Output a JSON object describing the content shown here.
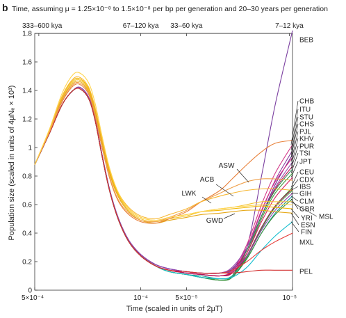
{
  "panel_letter": "b",
  "chart_data": {
    "type": "line",
    "title": "Time, assuming μ = 1.25×10⁻⁸ to 1.5×10⁻⁸ per bp per generation and 20–30 years per generation",
    "xlabel": "Time (scaled in units of 2μT)",
    "ylabel": "Population size (scaled in units of 4μNₑ × 10³)",
    "x_scale": "log",
    "x_reversed": true,
    "xlim": [
      0.0005,
      1e-05
    ],
    "ylim": [
      0,
      1.8
    ],
    "x_ticks": [
      {
        "value": 0.0005,
        "label": "5×10⁻⁴"
      },
      {
        "value": 0.0001,
        "label": "10⁻⁴"
      },
      {
        "value": 5e-05,
        "label": "5×10⁻⁵"
      },
      {
        "value": 1e-05,
        "label": "10⁻⁵"
      }
    ],
    "y_ticks": [
      0,
      0.2,
      0.4,
      0.6,
      0.8,
      1.0,
      1.2,
      1.4,
      1.6,
      1.8
    ],
    "y_tick_labels": [
      "0",
      "0.2",
      "0.4",
      "0.6",
      "0.8",
      "1",
      "1.2",
      "1.4",
      "1.6",
      "1.8"
    ],
    "top_axis_labels": [
      {
        "value": 0.00047,
        "label": "333–600 kya"
      },
      {
        "value": 0.0001,
        "label": "67–120 kya"
      },
      {
        "value": 5e-05,
        "label": "33–60 kya"
      },
      {
        "value": 1.05e-05,
        "label": "7–12 kya"
      }
    ],
    "x": [
      0.0005,
      0.0004,
      0.00033,
      0.00028,
      0.00025,
      0.00022,
      0.0002,
      0.00018,
      0.00016,
      0.00014,
      0.00012,
      0.0001,
      8e-05,
      6.5e-05,
      5e-05,
      4e-05,
      3e-05,
      2.5e-05,
      2e-05,
      1.6e-05,
      1.3e-05,
      1e-05
    ],
    "series": [
      {
        "name": "BEB",
        "color": "#7b3fa0",
        "values": [
          0.88,
          1.1,
          1.3,
          1.4,
          1.42,
          1.35,
          1.2,
          0.95,
          0.7,
          0.5,
          0.35,
          0.25,
          0.18,
          0.15,
          0.13,
          0.12,
          0.12,
          0.14,
          0.3,
          0.8,
          1.3,
          1.82
        ]
      },
      {
        "name": "CHB",
        "color": "#d23c8a",
        "values": [
          0.88,
          1.1,
          1.3,
          1.4,
          1.41,
          1.34,
          1.19,
          0.94,
          0.69,
          0.49,
          0.34,
          0.24,
          0.17,
          0.14,
          0.12,
          0.11,
          0.1,
          0.14,
          0.32,
          0.6,
          0.82,
          1.02
        ]
      },
      {
        "name": "ITU",
        "color": "#8b3a9e",
        "values": [
          0.88,
          1.1,
          1.3,
          1.4,
          1.42,
          1.35,
          1.2,
          0.95,
          0.7,
          0.5,
          0.35,
          0.25,
          0.18,
          0.15,
          0.13,
          0.12,
          0.12,
          0.16,
          0.3,
          0.55,
          0.77,
          0.98
        ]
      },
      {
        "name": "STU",
        "color": "#6a2d8f",
        "values": [
          0.88,
          1.1,
          1.3,
          1.4,
          1.42,
          1.35,
          1.2,
          0.95,
          0.7,
          0.5,
          0.35,
          0.25,
          0.18,
          0.15,
          0.13,
          0.12,
          0.12,
          0.15,
          0.28,
          0.52,
          0.74,
          0.95
        ]
      },
      {
        "name": "CHS",
        "color": "#e0308a",
        "values": [
          0.88,
          1.1,
          1.3,
          1.4,
          1.41,
          1.34,
          1.19,
          0.94,
          0.69,
          0.49,
          0.34,
          0.24,
          0.17,
          0.14,
          0.12,
          0.11,
          0.1,
          0.13,
          0.3,
          0.56,
          0.76,
          0.93
        ]
      },
      {
        "name": "PJL",
        "color": "#9b4fb0",
        "values": [
          0.88,
          1.1,
          1.3,
          1.4,
          1.42,
          1.35,
          1.2,
          0.95,
          0.7,
          0.5,
          0.35,
          0.25,
          0.18,
          0.15,
          0.13,
          0.12,
          0.12,
          0.16,
          0.3,
          0.52,
          0.72,
          0.9
        ]
      },
      {
        "name": "KHV",
        "color": "#c2185b",
        "values": [
          0.88,
          1.1,
          1.3,
          1.4,
          1.41,
          1.34,
          1.19,
          0.94,
          0.69,
          0.49,
          0.34,
          0.24,
          0.17,
          0.14,
          0.12,
          0.11,
          0.1,
          0.13,
          0.28,
          0.52,
          0.71,
          0.87
        ]
      },
      {
        "name": "PUR",
        "color": "#2e8b57",
        "values": [
          0.88,
          1.1,
          1.3,
          1.4,
          1.41,
          1.34,
          1.19,
          0.94,
          0.69,
          0.49,
          0.34,
          0.24,
          0.17,
          0.13,
          0.11,
          0.09,
          0.07,
          0.1,
          0.28,
          0.52,
          0.7,
          0.85
        ]
      },
      {
        "name": "TSI",
        "color": "#3c9a3c",
        "values": [
          0.88,
          1.1,
          1.3,
          1.4,
          1.41,
          1.34,
          1.19,
          0.94,
          0.69,
          0.49,
          0.34,
          0.24,
          0.17,
          0.13,
          0.11,
          0.09,
          0.08,
          0.1,
          0.26,
          0.5,
          0.68,
          0.82
        ]
      },
      {
        "name": "JPT",
        "color": "#d81b60",
        "values": [
          0.88,
          1.1,
          1.3,
          1.4,
          1.41,
          1.34,
          1.19,
          0.94,
          0.69,
          0.49,
          0.34,
          0.24,
          0.17,
          0.14,
          0.12,
          0.11,
          0.1,
          0.12,
          0.26,
          0.48,
          0.65,
          0.79
        ]
      },
      {
        "name": "CEU",
        "color": "#2ca02c",
        "values": [
          0.88,
          1.1,
          1.3,
          1.4,
          1.41,
          1.34,
          1.19,
          0.94,
          0.69,
          0.49,
          0.34,
          0.24,
          0.17,
          0.13,
          0.11,
          0.09,
          0.07,
          0.09,
          0.24,
          0.44,
          0.59,
          0.72
        ]
      },
      {
        "name": "CDX",
        "color": "#ad1457",
        "values": [
          0.88,
          1.1,
          1.3,
          1.4,
          1.41,
          1.34,
          1.19,
          0.94,
          0.69,
          0.49,
          0.34,
          0.24,
          0.17,
          0.14,
          0.12,
          0.11,
          0.1,
          0.12,
          0.24,
          0.44,
          0.59,
          0.71
        ]
      },
      {
        "name": "IBS",
        "color": "#43a047",
        "values": [
          0.88,
          1.1,
          1.3,
          1.4,
          1.41,
          1.34,
          1.19,
          0.94,
          0.69,
          0.49,
          0.34,
          0.24,
          0.17,
          0.13,
          0.11,
          0.09,
          0.07,
          0.09,
          0.23,
          0.43,
          0.58,
          0.7
        ]
      },
      {
        "name": "GIH",
        "color": "#8e44ad",
        "values": [
          0.88,
          1.1,
          1.3,
          1.4,
          1.42,
          1.35,
          1.2,
          0.95,
          0.7,
          0.5,
          0.35,
          0.25,
          0.18,
          0.15,
          0.13,
          0.12,
          0.12,
          0.14,
          0.24,
          0.42,
          0.56,
          0.68
        ]
      },
      {
        "name": "CLM",
        "color": "#1a9e9e",
        "values": [
          0.88,
          1.1,
          1.3,
          1.4,
          1.41,
          1.34,
          1.19,
          0.94,
          0.69,
          0.49,
          0.34,
          0.24,
          0.17,
          0.13,
          0.11,
          0.1,
          0.08,
          0.1,
          0.22,
          0.4,
          0.54,
          0.66
        ]
      },
      {
        "name": "GBR",
        "color": "#388e3c",
        "values": [
          0.88,
          1.1,
          1.3,
          1.4,
          1.41,
          1.34,
          1.19,
          0.94,
          0.69,
          0.49,
          0.34,
          0.24,
          0.17,
          0.13,
          0.11,
          0.09,
          0.07,
          0.09,
          0.22,
          0.4,
          0.53,
          0.64
        ]
      },
      {
        "name": "MSL",
        "color": "#f4c430",
        "values": [
          0.88,
          1.12,
          1.35,
          1.46,
          1.47,
          1.4,
          1.26,
          1.04,
          0.82,
          0.66,
          0.56,
          0.5,
          0.48,
          0.5,
          0.52,
          0.55,
          0.57,
          0.58,
          0.6,
          0.62,
          0.62,
          0.62
        ]
      },
      {
        "name": "YRI",
        "color": "#f2b705",
        "values": [
          0.88,
          1.12,
          1.36,
          1.47,
          1.48,
          1.41,
          1.27,
          1.05,
          0.83,
          0.67,
          0.57,
          0.51,
          0.49,
          0.51,
          0.53,
          0.55,
          0.56,
          0.57,
          0.58,
          0.59,
          0.58,
          0.57
        ]
      },
      {
        "name": "ESN",
        "color": "#e6a817",
        "values": [
          0.88,
          1.12,
          1.34,
          1.45,
          1.46,
          1.39,
          1.25,
          1.03,
          0.81,
          0.65,
          0.55,
          0.49,
          0.47,
          0.49,
          0.51,
          0.53,
          0.54,
          0.55,
          0.56,
          0.56,
          0.55,
          0.54
        ]
      },
      {
        "name": "FIN",
        "color": "#17becf",
        "values": [
          0.88,
          1.1,
          1.3,
          1.4,
          1.41,
          1.34,
          1.19,
          0.94,
          0.69,
          0.49,
          0.34,
          0.24,
          0.17,
          0.13,
          0.11,
          0.09,
          0.08,
          0.09,
          0.16,
          0.28,
          0.38,
          0.48
        ]
      },
      {
        "name": "MXL",
        "color": "#e53935",
        "values": [
          0.88,
          1.1,
          1.3,
          1.4,
          1.41,
          1.34,
          1.19,
          0.94,
          0.69,
          0.49,
          0.34,
          0.24,
          0.17,
          0.14,
          0.13,
          0.12,
          0.12,
          0.14,
          0.2,
          0.28,
          0.34,
          0.4
        ]
      },
      {
        "name": "PEL",
        "color": "#d32f2f",
        "values": [
          0.88,
          1.1,
          1.3,
          1.4,
          1.41,
          1.34,
          1.19,
          0.94,
          0.69,
          0.49,
          0.34,
          0.24,
          0.17,
          0.14,
          0.13,
          0.12,
          0.12,
          0.12,
          0.13,
          0.14,
          0.14,
          0.14
        ]
      },
      {
        "name": "ASW",
        "color": "#e8803a",
        "values": [
          0.88,
          1.11,
          1.32,
          1.43,
          1.44,
          1.37,
          1.22,
          1.0,
          0.78,
          0.62,
          0.53,
          0.48,
          0.47,
          0.5,
          0.55,
          0.62,
          0.7,
          0.78,
          0.88,
          0.97,
          1.03,
          1.05
        ]
      },
      {
        "name": "ACB",
        "color": "#f0a04b",
        "values": [
          0.88,
          1.11,
          1.33,
          1.44,
          1.45,
          1.38,
          1.23,
          1.01,
          0.79,
          0.63,
          0.54,
          0.49,
          0.48,
          0.51,
          0.56,
          0.62,
          0.68,
          0.72,
          0.76,
          0.78,
          0.78,
          0.77
        ]
      },
      {
        "name": "LWK",
        "color": "#f7b733",
        "values": [
          0.88,
          1.12,
          1.36,
          1.48,
          1.49,
          1.42,
          1.28,
          1.06,
          0.84,
          0.68,
          0.58,
          0.52,
          0.5,
          0.53,
          0.57,
          0.62,
          0.66,
          0.68,
          0.7,
          0.71,
          0.71,
          0.7
        ]
      },
      {
        "name": "GWD",
        "color": "#ffd54f",
        "values": [
          0.88,
          1.13,
          1.38,
          1.51,
          1.52,
          1.45,
          1.31,
          1.08,
          0.85,
          0.68,
          0.57,
          0.51,
          0.49,
          0.51,
          0.53,
          0.55,
          0.57,
          0.58,
          0.59,
          0.6,
          0.6,
          0.6
        ]
      }
    ],
    "annotations": [
      {
        "text": "ASW",
        "x": 3.3e-05,
        "y": 0.99
      },
      {
        "text": "ACB",
        "x": 4.1e-05,
        "y": 0.85
      },
      {
        "text": "LWK",
        "x": 5.8e-05,
        "y": 0.78
      },
      {
        "text": "GWD",
        "x": 3.6e-05,
        "y": 0.51
      }
    ],
    "right_labels": [
      "BEB",
      "CHB",
      "ITU",
      "STU",
      "CHS",
      "PJL",
      "KHV",
      "PUR",
      "TSI",
      "JPT",
      "CEU",
      "CDX",
      "IBS",
      "GIH",
      "CLM",
      "GBR",
      "MSL",
      "YRI",
      "ESN",
      "FIN",
      "MXL",
      "PEL"
    ],
    "grid": false,
    "legend": "none"
  }
}
